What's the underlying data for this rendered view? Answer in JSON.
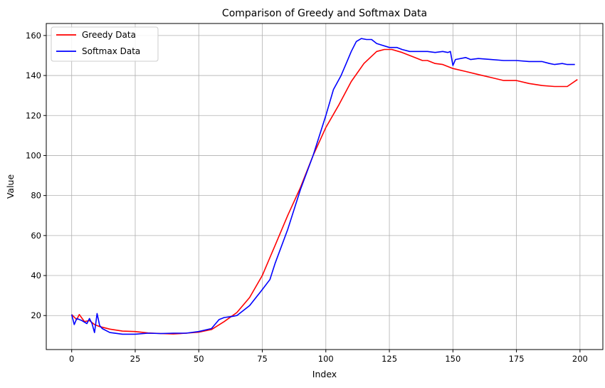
{
  "chart_data": {
    "type": "line",
    "title": "Comparison of Greedy and Softmax Data",
    "xlabel": "Index",
    "ylabel": "Value",
    "xlim": [
      -10,
      209
    ],
    "ylim": [
      3,
      166
    ],
    "xticks": [
      0,
      25,
      50,
      75,
      100,
      125,
      150,
      175,
      200
    ],
    "yticks": [
      20,
      40,
      60,
      80,
      100,
      120,
      140,
      160
    ],
    "grid": true,
    "legend_position": "top-left",
    "series": [
      {
        "name": "Greedy Data",
        "color": "#ff0000",
        "points": [
          [
            0,
            20.5
          ],
          [
            2,
            18
          ],
          [
            3,
            20.5
          ],
          [
            5,
            17
          ],
          [
            7,
            17.5
          ],
          [
            9,
            15.5
          ],
          [
            11,
            14.5
          ],
          [
            15,
            13.2
          ],
          [
            20,
            12.2
          ],
          [
            25,
            12
          ],
          [
            30,
            11.3
          ],
          [
            35,
            11
          ],
          [
            40,
            10.8
          ],
          [
            45,
            11.2
          ],
          [
            50,
            11.7
          ],
          [
            55,
            13
          ],
          [
            60,
            17
          ],
          [
            65,
            21.5
          ],
          [
            70,
            29
          ],
          [
            75,
            40
          ],
          [
            80,
            55
          ],
          [
            85,
            70
          ],
          [
            90,
            84
          ],
          [
            95,
            100
          ],
          [
            100,
            114
          ],
          [
            105,
            125
          ],
          [
            110,
            137
          ],
          [
            115,
            146
          ],
          [
            120,
            152
          ],
          [
            123,
            153
          ],
          [
            126,
            153
          ],
          [
            130,
            151.5
          ],
          [
            135,
            149
          ],
          [
            138,
            147.5
          ],
          [
            140,
            147.5
          ],
          [
            143,
            146
          ],
          [
            146,
            145.5
          ],
          [
            150,
            143.5
          ],
          [
            155,
            142
          ],
          [
            160,
            140.5
          ],
          [
            165,
            139
          ],
          [
            170,
            137.5
          ],
          [
            175,
            137.5
          ],
          [
            180,
            136
          ],
          [
            185,
            135
          ],
          [
            190,
            134.5
          ],
          [
            195,
            134.5
          ],
          [
            199,
            138
          ]
        ]
      },
      {
        "name": "Softmax Data",
        "color": "#0000ff",
        "points": [
          [
            0,
            20.5
          ],
          [
            1,
            15.5
          ],
          [
            2,
            18.5
          ],
          [
            4,
            17.5
          ],
          [
            6,
            16
          ],
          [
            7,
            18.5
          ],
          [
            8,
            16
          ],
          [
            9,
            11.5
          ],
          [
            10,
            21
          ],
          [
            11,
            15
          ],
          [
            12,
            13.5
          ],
          [
            15,
            11.5
          ],
          [
            20,
            10.7
          ],
          [
            25,
            10.7
          ],
          [
            30,
            11.2
          ],
          [
            35,
            11
          ],
          [
            40,
            11.2
          ],
          [
            45,
            11.2
          ],
          [
            50,
            12
          ],
          [
            55,
            13.5
          ],
          [
            58,
            18
          ],
          [
            60,
            19
          ],
          [
            63,
            19.5
          ],
          [
            65,
            20
          ],
          [
            70,
            25
          ],
          [
            75,
            33
          ],
          [
            78,
            38
          ],
          [
            80,
            46
          ],
          [
            85,
            63
          ],
          [
            90,
            83
          ],
          [
            95,
            100
          ],
          [
            100,
            120
          ],
          [
            103,
            133
          ],
          [
            106,
            140
          ],
          [
            108,
            146
          ],
          [
            110,
            152
          ],
          [
            112,
            157
          ],
          [
            114,
            158.5
          ],
          [
            116,
            158
          ],
          [
            118,
            158
          ],
          [
            120,
            156
          ],
          [
            125,
            154
          ],
          [
            128,
            154
          ],
          [
            130,
            153
          ],
          [
            133,
            152
          ],
          [
            135,
            152
          ],
          [
            138,
            152
          ],
          [
            140,
            152
          ],
          [
            143,
            151.5
          ],
          [
            146,
            152
          ],
          [
            148,
            151.5
          ],
          [
            149,
            152
          ],
          [
            150,
            145
          ],
          [
            151,
            148
          ],
          [
            155,
            149
          ],
          [
            157,
            148
          ],
          [
            160,
            148.5
          ],
          [
            165,
            148
          ],
          [
            170,
            147.5
          ],
          [
            175,
            147.5
          ],
          [
            180,
            147
          ],
          [
            185,
            147
          ],
          [
            188,
            146
          ],
          [
            190,
            145.5
          ],
          [
            193,
            146
          ],
          [
            195,
            145.5
          ],
          [
            198,
            145.5
          ]
        ]
      }
    ]
  }
}
